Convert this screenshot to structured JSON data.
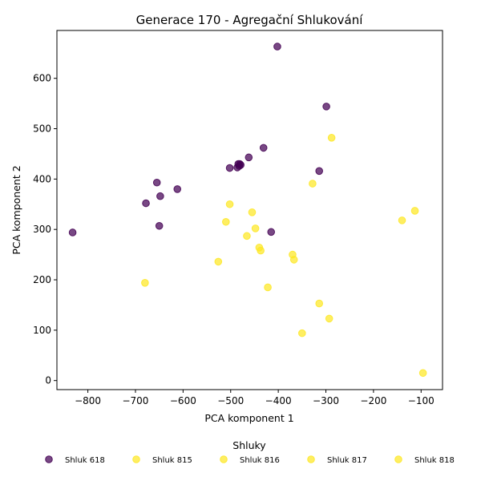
{
  "chart_data": {
    "type": "scatter",
    "title": "Generace 170 - Agregační Shlukování",
    "xlabel": "PCA komponent 1",
    "ylabel": "PCA komponent 2",
    "xlim": [
      -865,
      -55
    ],
    "ylim": [
      -18,
      695
    ],
    "xticks": [
      -800,
      -700,
      -600,
      -500,
      -400,
      -300,
      -200,
      -100
    ],
    "xtick_labels": [
      "−800",
      "−700",
      "−600",
      "−500",
      "−400",
      "−300",
      "−200",
      "−100"
    ],
    "yticks": [
      0,
      100,
      200,
      300,
      400,
      500,
      600
    ],
    "ytick_labels": [
      "0",
      "100",
      "200",
      "300",
      "400",
      "500",
      "600"
    ],
    "grid": false,
    "legend": {
      "title": "Shluky",
      "placement": "bottom"
    },
    "series": [
      {
        "name": "Shluk 618",
        "color": "#440154",
        "points": [
          [
            -832,
            294
          ],
          [
            -678,
            352
          ],
          [
            -655,
            393
          ],
          [
            -648,
            366
          ],
          [
            -650,
            307
          ],
          [
            -612,
            380
          ],
          [
            -502,
            422
          ],
          [
            -486,
            423
          ],
          [
            -484,
            430
          ],
          [
            -482,
            426
          ],
          [
            -481,
            430
          ],
          [
            -479,
            428
          ],
          [
            -462,
            443
          ],
          [
            -431,
            462
          ],
          [
            -415,
            295
          ],
          [
            -402,
            663
          ],
          [
            -299,
            544
          ],
          [
            -314,
            416
          ]
        ]
      },
      {
        "name": "Shluk 815",
        "color": "#fde725",
        "points": [
          [
            -680,
            194
          ],
          [
            -526,
            236
          ],
          [
            -510,
            315
          ],
          [
            -502,
            350
          ],
          [
            -466,
            287
          ],
          [
            -455,
            334
          ],
          [
            -448,
            302
          ],
          [
            -440,
            264
          ],
          [
            -437,
            258
          ],
          [
            -422,
            185
          ],
          [
            -370,
            250
          ],
          [
            -367,
            240
          ],
          [
            -350,
            94
          ],
          [
            -328,
            391
          ],
          [
            -314,
            153
          ],
          [
            -293,
            123
          ],
          [
            -288,
            482
          ],
          [
            -140,
            318
          ],
          [
            -113,
            337
          ],
          [
            -96,
            15
          ]
        ]
      },
      {
        "name": "Shluk 816",
        "color": "#fde725",
        "points": []
      },
      {
        "name": "Shluk 817",
        "color": "#fde725",
        "points": []
      },
      {
        "name": "Shluk 818",
        "color": "#fde725",
        "points": []
      }
    ]
  }
}
